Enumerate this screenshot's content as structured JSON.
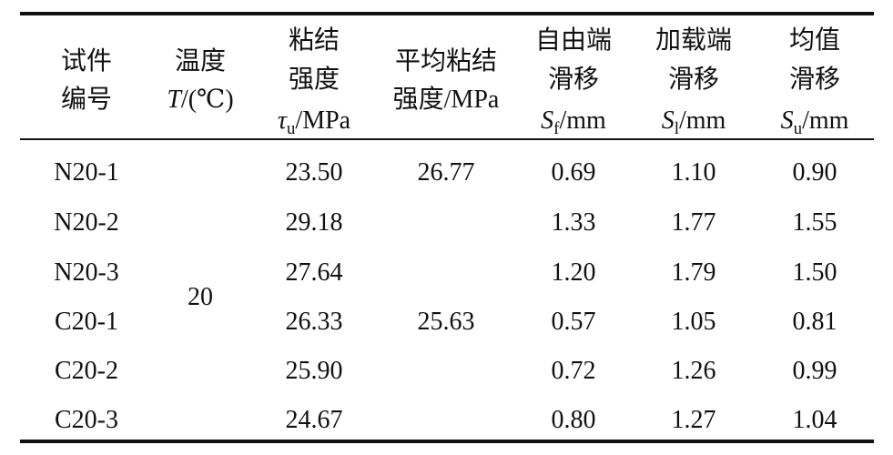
{
  "table": {
    "columns": [
      {
        "lines": [
          "试件",
          "编号"
        ]
      },
      {
        "lines": [
          "温度"
        ],
        "symbol": "T",
        "unit": "/(℃)"
      },
      {
        "lines": [
          "粘结",
          "强度"
        ],
        "symbol": "τ",
        "sub": "u",
        "unit": "/MPa"
      },
      {
        "lines": [
          "平均粘结",
          "强度/MPa"
        ]
      },
      {
        "lines": [
          "自由端",
          "滑移"
        ],
        "symbol": "S",
        "sub": "f",
        "unit": "/mm"
      },
      {
        "lines": [
          "加载端",
          "滑移"
        ],
        "symbol": "S",
        "sub": "l",
        "unit": "/mm"
      },
      {
        "lines": [
          "均值",
          "滑移"
        ],
        "symbol": "S",
        "sub": "u",
        "unit": "/mm"
      }
    ],
    "temperature": "20",
    "average_strengths": [
      "26.77",
      "25.63"
    ],
    "rows": [
      [
        "N20-1",
        "23.50",
        "0.69",
        "1.10",
        "0.90"
      ],
      [
        "N20-2",
        "29.18",
        "1.33",
        "1.77",
        "1.55"
      ],
      [
        "N20-3",
        "27.64",
        "1.20",
        "1.79",
        "1.50"
      ],
      [
        "C20-1",
        "26.33",
        "0.57",
        "1.05",
        "0.81"
      ],
      [
        "C20-2",
        "25.90",
        "0.72",
        "1.26",
        "0.99"
      ],
      [
        "C20-3",
        "24.67",
        "0.80",
        "1.27",
        "1.04"
      ]
    ]
  }
}
